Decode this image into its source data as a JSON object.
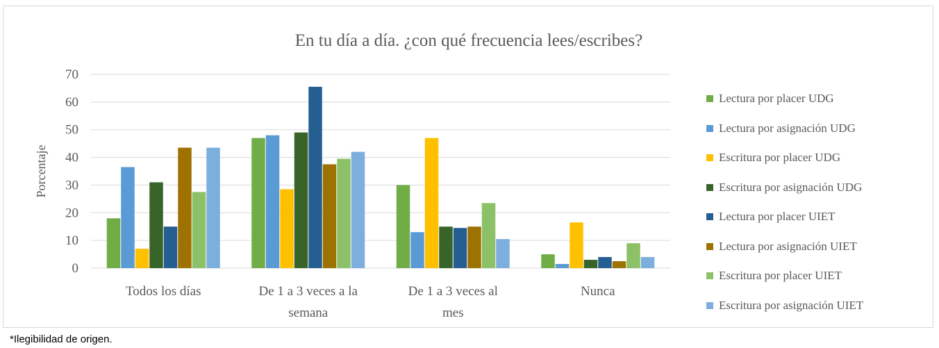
{
  "footnote": "*Ilegibilidad de origen.",
  "chart_data": {
    "type": "bar",
    "title": "En tu día a día. ¿con qué frecuencia lees/escribes?",
    "xlabel": "",
    "ylabel": "Porcentaje",
    "ylim": [
      0,
      70
    ],
    "yticks": [
      0,
      10,
      20,
      30,
      40,
      50,
      60,
      70
    ],
    "grid": true,
    "legend_position": "right",
    "categories": [
      "Todos los días",
      "De 1 a 3 veces a la semana",
      "De 1 a 3 veces al mes",
      "Nunca"
    ],
    "category_lines": [
      [
        "Todos los días"
      ],
      [
        "De 1 a 3 veces a la",
        "semana"
      ],
      [
        "De 1 a 3 veces al",
        "mes"
      ],
      [
        "Nunca"
      ]
    ],
    "series": [
      {
        "name": "Lectura por placer UDG",
        "color": "#70ad47",
        "values": [
          18,
          47,
          30,
          5
        ]
      },
      {
        "name": "Lectura por asignación UDG",
        "color": "#5b9bd5",
        "values": [
          36.5,
          48,
          13,
          1.5
        ]
      },
      {
        "name": "Escritura por placer UDG",
        "color": "#ffc000",
        "values": [
          7,
          28.5,
          47,
          16.5
        ]
      },
      {
        "name": "Escritura por asignación UDG",
        "color": "#38642a",
        "values": [
          31,
          49,
          15,
          3
        ]
      },
      {
        "name": "Lectura por placer UIET",
        "color": "#255e91",
        "values": [
          15,
          65.5,
          14.5,
          4
        ]
      },
      {
        "name": "Lectura por asignación UIET",
        "color": "#9e7200",
        "values": [
          43.5,
          37.5,
          15,
          2.5
        ]
      },
      {
        "name": "Escritura por placer UIET",
        "color": "#8cc168",
        "values": [
          27.5,
          39.5,
          23.5,
          9
        ]
      },
      {
        "name": "Escritura por asignación UIET",
        "color": "#7cafdd",
        "values": [
          43.5,
          42,
          10.5,
          4
        ]
      }
    ]
  }
}
